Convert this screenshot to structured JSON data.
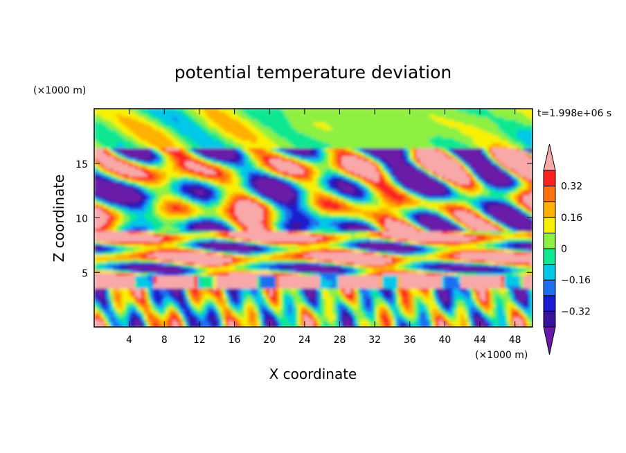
{
  "chart_data": {
    "type": "heatmap",
    "title": "potential temperature deviation",
    "xlabel": "X coordinate",
    "ylabel": "Z coordinate",
    "x_unit": "(×1000 m)",
    "y_unit": "(×1000 m)",
    "time_label": "t=1.998e+06 s",
    "xlim": [
      0,
      50
    ],
    "ylim": [
      0,
      20
    ],
    "x_ticks": [
      4,
      8,
      12,
      16,
      20,
      24,
      28,
      32,
      36,
      40,
      44,
      48
    ],
    "y_ticks": [
      5,
      10,
      15
    ],
    "colorbar": {
      "levels": [
        -0.4,
        -0.32,
        -0.24,
        -0.16,
        -0.08,
        0,
        0.08,
        0.16,
        0.24,
        0.32,
        0.4
      ],
      "colors": [
        "#6a1aa8",
        "#3a12a0",
        "#1a1ad0",
        "#1e6ef0",
        "#00c8e8",
        "#10e890",
        "#8ef040",
        "#f8f000",
        "#ffb000",
        "#ff7010",
        "#ff2020",
        "#f8a8a8"
      ],
      "tick_labels": [
        "0.32",
        "0.16",
        "0",
        "−0.16",
        "−0.32"
      ],
      "tick_values": [
        0.32,
        0.16,
        0,
        -0.16,
        -0.32
      ]
    }
  }
}
